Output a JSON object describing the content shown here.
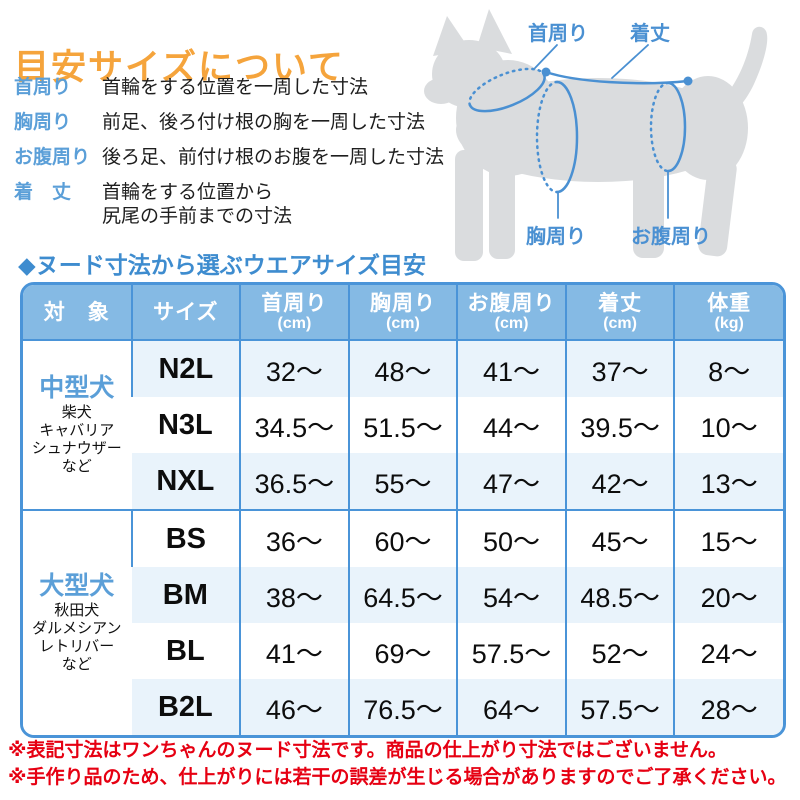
{
  "page": {
    "title": "目安サイズについて",
    "section_title": "◆ヌード寸法から選ぶウエアサイズ目安"
  },
  "measurements": [
    {
      "label": "首周り",
      "lines": [
        "首輪をする位置を一周した寸法"
      ]
    },
    {
      "label": "胸周り",
      "lines": [
        "前足、後ろ付け根の胸を一周した寸法"
      ]
    },
    {
      "label": "お腹周り",
      "lines": [
        "後ろ足、前付け根のお腹を一周した寸法"
      ]
    },
    {
      "label": "着　丈",
      "lines": [
        "首輪をする位置から",
        "尻尾の手前までの寸法"
      ]
    }
  ],
  "diagram": {
    "neck_label": "首周り",
    "length_label": "着丈",
    "chest_label": "胸周り",
    "belly_label": "お腹周り"
  },
  "table": {
    "headers": [
      {
        "main": "対　象",
        "sub": ""
      },
      {
        "main": "サイズ",
        "sub": ""
      },
      {
        "main": "首周り",
        "sub": "(cm)"
      },
      {
        "main": "胸周り",
        "sub": "(cm)"
      },
      {
        "main": "お腹周り",
        "sub": "(cm)"
      },
      {
        "main": "着丈",
        "sub": "(cm)"
      },
      {
        "main": "体重",
        "sub": "(kg)"
      }
    ],
    "groups": [
      {
        "name": "中型犬",
        "breeds": [
          "柴犬",
          "キャバリア",
          "シュナウザー",
          "など"
        ],
        "rows": [
          {
            "size": "N2L",
            "values": [
              "32～",
              "48～",
              "41～",
              "37～",
              "8～"
            ],
            "shade": true
          },
          {
            "size": "N3L",
            "values": [
              "34.5～",
              "51.5～",
              "44～",
              "39.5～",
              "10～"
            ],
            "shade": false
          },
          {
            "size": "NXL",
            "values": [
              "36.5～",
              "55～",
              "47～",
              "42～",
              "13～"
            ],
            "shade": true
          }
        ]
      },
      {
        "name": "大型犬",
        "breeds": [
          "秋田犬",
          "ダルメシアン",
          "レトリバー",
          "など"
        ],
        "rows": [
          {
            "size": "BS",
            "values": [
              "36～",
              "60～",
              "50～",
              "45～",
              "15～"
            ],
            "shade": false
          },
          {
            "size": "BM",
            "values": [
              "38～",
              "64.5～",
              "54～",
              "48.5～",
              "20～"
            ],
            "shade": true
          },
          {
            "size": "BL",
            "values": [
              "41～",
              "69～",
              "57.5～",
              "52～",
              "24～"
            ],
            "shade": false
          },
          {
            "size": "B2L",
            "values": [
              "46～",
              "76.5～",
              "64～",
              "57.5～",
              "28～"
            ],
            "shade": true
          }
        ]
      }
    ]
  },
  "notes": [
    "※表記寸法はワンちゃんのヌード寸法です。商品の仕上がり寸法ではございません。",
    "※手作り品のため、仕上がりには若干の誤差が生じる場合がありますのでご了承ください。"
  ],
  "colors": {
    "accent_orange": "#F5A43C",
    "label_blue": "#5B9FD8",
    "diagram_blue": "#4A90D2",
    "header_bg": "#85BAE4",
    "border_blue": "#4A94D8",
    "row_shade": "#E9F3FB",
    "note_red": "#E60012",
    "dog_gray": "#DADCDE"
  }
}
